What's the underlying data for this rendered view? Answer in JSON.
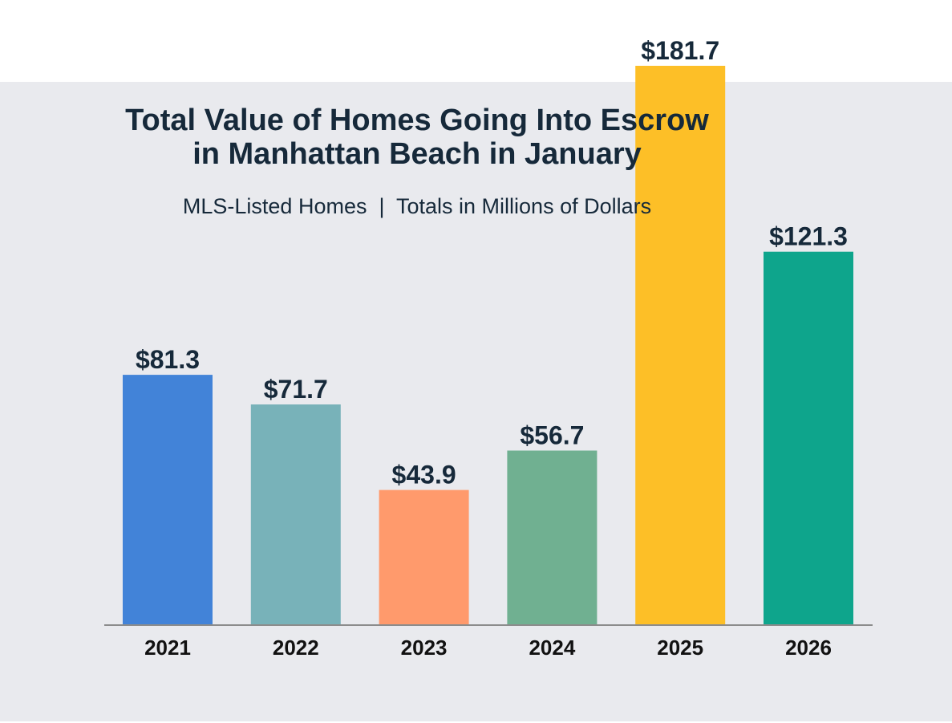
{
  "chart_data": {
    "type": "bar",
    "title": "Total Value of Homes Going Into Escrow in Manhattan Beach in January",
    "title_lines": [
      "Total Value of Homes Going Into Escrow",
      "in Manhattan Beach in January"
    ],
    "subtitle": "MLS-Listed Homes  |  Totals in Millions of Dollars",
    "categories": [
      "2021",
      "2022",
      "2023",
      "2024",
      "2025",
      "2026"
    ],
    "values": [
      81.3,
      71.7,
      43.9,
      56.7,
      181.7,
      121.3
    ],
    "value_labels": [
      "$81.3",
      "$71.7",
      "$43.9",
      "$56.7",
      "$181.7",
      "$121.3"
    ],
    "colors": [
      "#4283d8",
      "#78b2b9",
      "#ff9a6c",
      "#70b091",
      "#fdbf27",
      "#0ea58c"
    ],
    "xlabel": "",
    "ylabel": "",
    "ylim": [
      0,
      181.7
    ],
    "grid": false,
    "legend": "none",
    "background_color": "#e9eaee",
    "axis_color": "#8c8c8c"
  }
}
